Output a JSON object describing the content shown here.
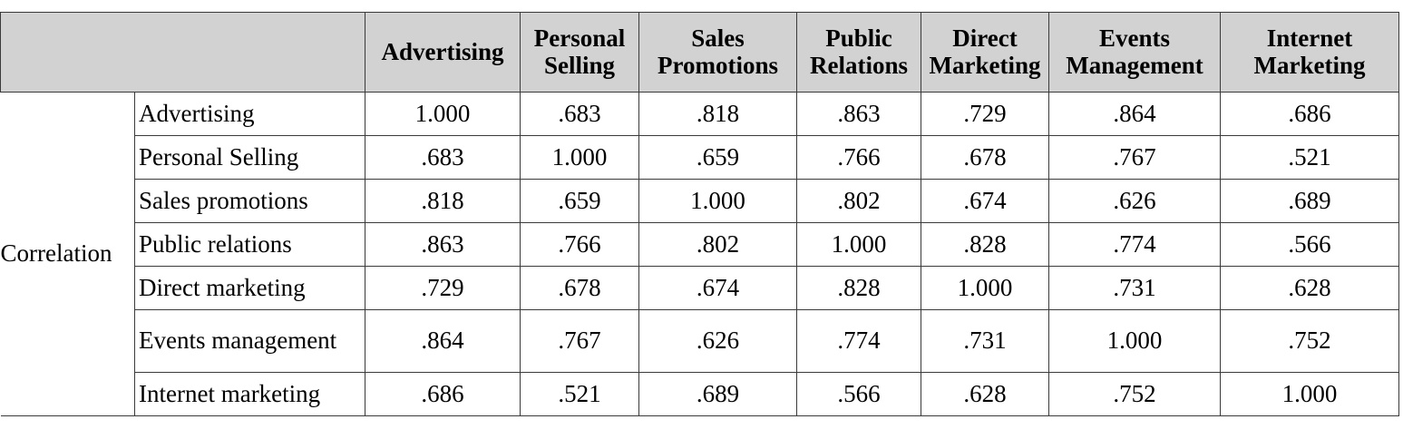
{
  "table": {
    "columns": [
      [
        "Advertising"
      ],
      [
        "Personal",
        "Selling"
      ],
      [
        "Sales",
        "Promotions"
      ],
      [
        "Public",
        "Relations"
      ],
      [
        "Direct",
        "Marketing"
      ],
      [
        "Events",
        "Management"
      ],
      [
        "Internet",
        "Marketing"
      ]
    ],
    "group_label": "Correlation",
    "rows": [
      {
        "label": "Advertising",
        "values": [
          "1.000",
          ".683",
          ".818",
          ".863",
          ".729",
          ".864",
          ".686"
        ]
      },
      {
        "label": "Personal Selling",
        "values": [
          ".683",
          "1.000",
          ".659",
          ".766",
          ".678",
          ".767",
          ".521"
        ]
      },
      {
        "label": "Sales promotions",
        "values": [
          ".818",
          ".659",
          "1.000",
          ".802",
          ".674",
          ".626",
          ".689"
        ]
      },
      {
        "label": "Public relations",
        "values": [
          ".863",
          ".766",
          ".802",
          "1.000",
          ".828",
          ".774",
          ".566"
        ]
      },
      {
        "label": "Direct marketing",
        "values": [
          ".729",
          ".678",
          ".674",
          ".828",
          "1.000",
          ".731",
          ".628"
        ]
      },
      {
        "label": "Events management",
        "values": [
          ".864",
          ".767",
          ".626",
          ".774",
          ".731",
          "1.000",
          ".752"
        ]
      },
      {
        "label": "Internet marketing",
        "values": [
          ".686",
          ".521",
          ".689",
          ".566",
          ".628",
          ".752",
          "1.000"
        ]
      }
    ]
  }
}
